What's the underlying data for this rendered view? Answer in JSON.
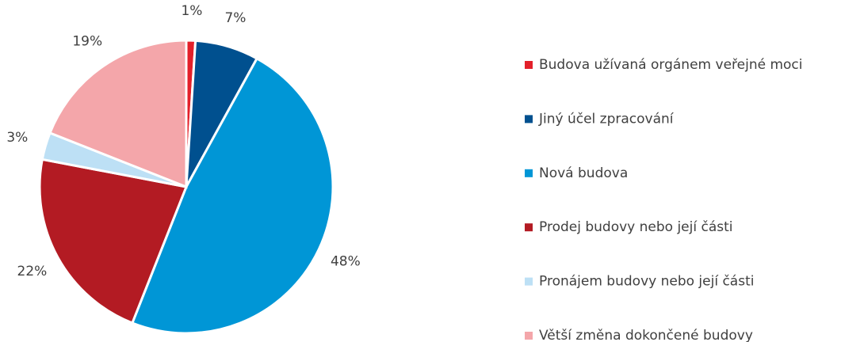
{
  "chart_data": {
    "type": "pie",
    "categories": [
      "Budova užívaná orgánem veřejné moci",
      "Jiný účel zpracování",
      "Nová budova",
      "Prodej budovy nebo její části",
      "Pronájem budovy nebo její části",
      "Větší změna dokončené budovy"
    ],
    "values": [
      1,
      7,
      48,
      22,
      3,
      19
    ],
    "value_labels": [
      "1%",
      "7%",
      "48%",
      "22%",
      "3%",
      "19%"
    ],
    "colors": [
      "#e3202a",
      "#00508f",
      "#0096d6",
      "#b31b23",
      "#bde0f5",
      "#f4a6aa"
    ],
    "legend": "right"
  }
}
